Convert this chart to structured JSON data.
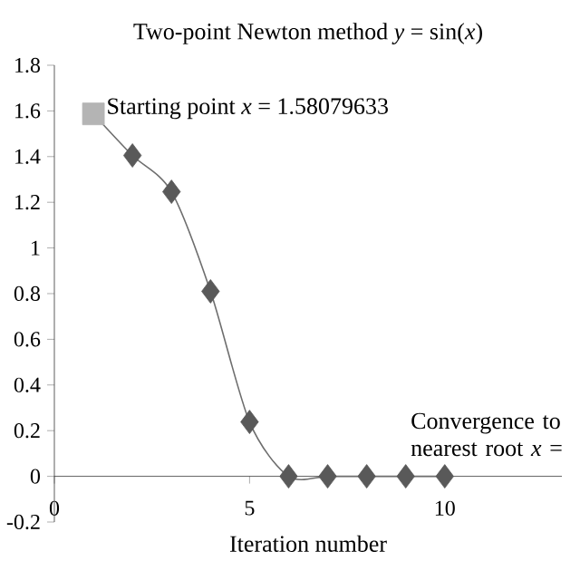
{
  "chart_data": {
    "type": "line",
    "title": "Two-point Newton method *y* = sin(*x*)",
    "xlabel": "Iteration number",
    "xlim": [
      0,
      13
    ],
    "ylim": [
      -0.2,
      1.8
    ],
    "xticks": [
      0,
      5,
      10
    ],
    "yticks": [
      -0.2,
      0,
      0.2,
      0.4,
      0.6,
      0.8,
      1,
      1.2,
      1.4,
      1.6,
      1.8
    ],
    "series": [
      {
        "type": "line",
        "color": "#6e6e6e",
        "marker": "none",
        "x": [
          1,
          2,
          3,
          4,
          5,
          6,
          7,
          8,
          9,
          10
        ],
        "values": [
          1.587,
          1.405,
          1.246,
          0.81,
          0.238,
          0,
          0,
          0,
          0,
          0
        ]
      },
      {
        "type": "scatter",
        "color": "#595959",
        "marker": "diamond",
        "x": [
          2,
          3,
          4,
          5,
          6,
          7,
          8,
          9,
          10
        ],
        "values": [
          1.405,
          1.246,
          0.81,
          0.238,
          0,
          0,
          0,
          0,
          0
        ]
      },
      {
        "type": "scatter",
        "color": "#b4b4b4",
        "marker": "square",
        "x": [
          1
        ],
        "values": [
          1.587
        ]
      }
    ],
    "annotations": [
      {
        "text": "Starting point *x* = 1.58079633",
        "x": 1,
        "y": 1.587
      },
      {
        "text": "Convergence to nearest root *x* =",
        "x": 10,
        "y": 0
      }
    ]
  }
}
